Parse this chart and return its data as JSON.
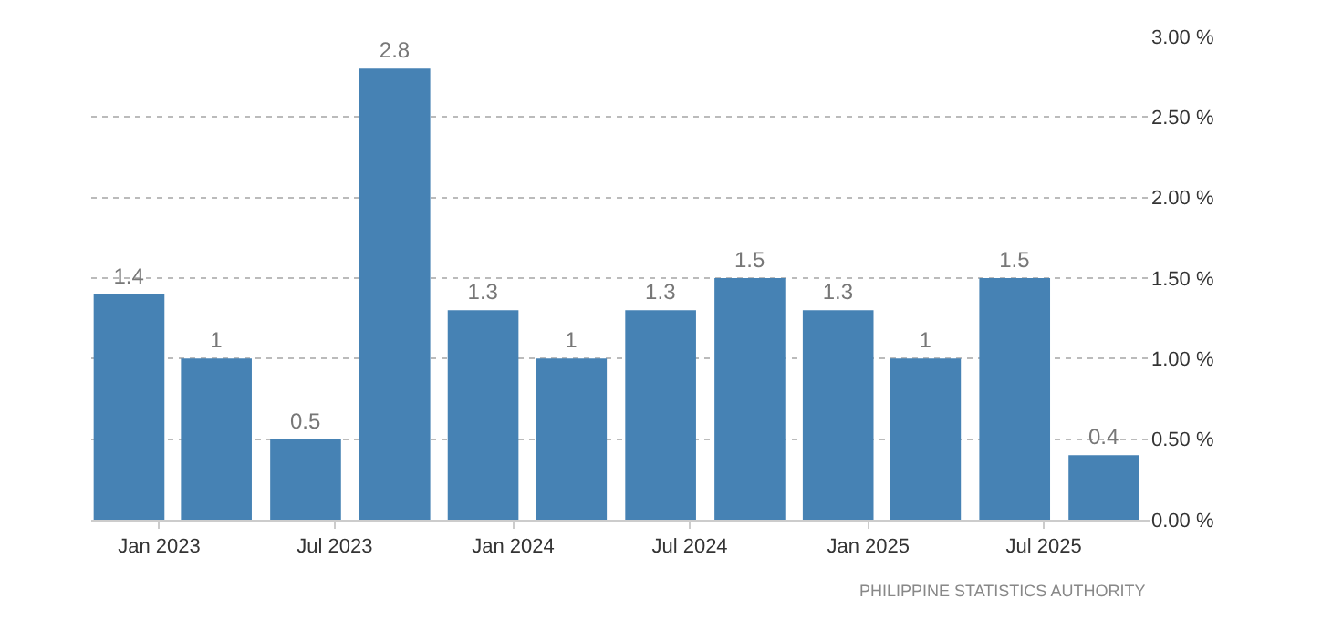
{
  "chart_data": {
    "type": "bar",
    "x": [
      "2022-12",
      "2023-03",
      "2023-06",
      "2023-09",
      "2023-12",
      "2024-03",
      "2024-06",
      "2024-09",
      "2024-12",
      "2025-03",
      "2025-06",
      "2025-09"
    ],
    "values": [
      1.4,
      1,
      0.5,
      2.8,
      1.3,
      1,
      1.3,
      1.5,
      1.3,
      1,
      1.5,
      0.4
    ],
    "color": "#4682b4",
    "data_labels": true,
    "xlim": [
      "2022-10-23",
      "2025-10-18"
    ],
    "xticks": [
      {
        "value": "2023-01",
        "label": "Jan 2023"
      },
      {
        "value": "2023-07",
        "label": "Jul 2023"
      },
      {
        "value": "2024-01",
        "label": "Jan 2024"
      },
      {
        "value": "2024-07",
        "label": "Jul 2024"
      },
      {
        "value": "2025-01",
        "label": "Jan 2025"
      },
      {
        "value": "2025-07",
        "label": "Jul 2025"
      }
    ],
    "ylim": [
      0,
      3
    ],
    "yticks": [
      {
        "value": 0,
        "label": "0.00 %"
      },
      {
        "value": 0.5,
        "label": "0.50 %"
      },
      {
        "value": 1,
        "label": "1.00 %"
      },
      {
        "value": 1.5,
        "label": "1.50 %"
      },
      {
        "value": 2,
        "label": "2.00 %"
      },
      {
        "value": 2.5,
        "label": "2.50 %"
      },
      {
        "value": 3,
        "label": "3.00 %"
      }
    ],
    "grid": "y",
    "annotations": [
      "PHILIPPINE STATISTICS AUTHORITY"
    ]
  }
}
